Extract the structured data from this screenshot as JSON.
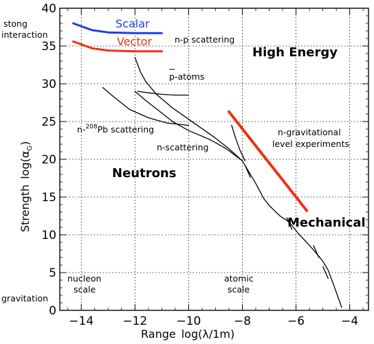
{
  "chart_data": {
    "type": "line",
    "xlabel": "Range",
    "xlabel_math": "log(λ/1m)",
    "ylabel": "Strength",
    "ylabel_math": "log(α",
    "ylabel_sub": "G",
    "ylabel_close": ")",
    "xlim": [
      -14.8,
      -3.3
    ],
    "ylim": [
      0,
      40
    ],
    "x_ticks": [
      -14,
      -12,
      -10,
      -8,
      -6,
      -4
    ],
    "y_ticks": [
      0,
      5,
      10,
      15,
      20,
      25,
      30,
      35,
      40
    ],
    "grid": true,
    "series": [
      {
        "name": "Scalar",
        "color": "#1f3fe0",
        "width": 3,
        "x": [
          -14.3,
          -13.6,
          -13.0,
          -12.0,
          -11.0
        ],
        "y": [
          38.0,
          37.1,
          36.8,
          36.7,
          36.7
        ]
      },
      {
        "name": "Vector",
        "color": "#f03010",
        "width": 3,
        "x": [
          -14.3,
          -13.6,
          -13.0,
          -12.0,
          -11.0
        ],
        "y": [
          35.6,
          34.7,
          34.4,
          34.3,
          34.3
        ]
      },
      {
        "name": "n-gravitational level experiments",
        "color": "#f03010",
        "width": 4,
        "x": [
          -8.5,
          -5.6
        ],
        "y": [
          26.3,
          13.2
        ]
      },
      {
        "name": "n-p scattering",
        "color": "#000000",
        "width": 1.3,
        "x": [
          -12.0,
          -11.8,
          -11.6,
          -11.2,
          -10.6,
          -9.8,
          -9.0,
          -8.5,
          -8.0,
          -7.8,
          -7.5,
          -7.2,
          -7.0,
          -6.8,
          -6.6,
          -6.3,
          -6.1,
          -5.9,
          -5.6,
          -5.3,
          -5.0,
          -4.8,
          -4.6,
          -4.3
        ],
        "y": [
          33.5,
          31.6,
          30.3,
          28.6,
          26.8,
          24.8,
          22.8,
          21.4,
          19.8,
          18.6,
          16.8,
          14.8,
          13.9,
          13.2,
          12.5,
          11.8,
          11.0,
          10.1,
          9.0,
          7.8,
          6.5,
          5.3,
          3.4,
          0.4
        ]
      },
      {
        "name": "p-atoms",
        "color": "#000000",
        "width": 1.3,
        "x": [
          -11.9,
          -11.5,
          -11.0,
          -10.5,
          -10.0
        ],
        "y": [
          29.0,
          28.8,
          28.6,
          28.5,
          28.5
        ]
      },
      {
        "name": "n-208Pb scattering",
        "color": "#000000",
        "width": 1.3,
        "x": [
          -13.2,
          -12.8,
          -12.2,
          -11.5,
          -10.8,
          -10.0
        ],
        "y": [
          29.5,
          28.3,
          26.6,
          25.5,
          24.8,
          24.5
        ]
      },
      {
        "name": "n-scattering",
        "color": "#000000",
        "width": 1.3,
        "x": [
          -12.0,
          -11.6,
          -11.1,
          -10.6,
          -10.0,
          -9.2,
          -8.6,
          -8.0
        ],
        "y": [
          29.0,
          27.8,
          26.4,
          25.0,
          23.8,
          22.6,
          21.4,
          19.8
        ]
      },
      {
        "name": "Mechanical",
        "color": "#000000",
        "width": 1.3,
        "x": [
          -8.4,
          -8.25,
          -8.1,
          -7.9
        ],
        "y": [
          24.5,
          22.8,
          21.3,
          19.8
        ]
      }
    ],
    "tick_marks": [
      {
        "x": -7.8,
        "y": 18.4
      },
      {
        "x": -6.25,
        "y": 11.5
      },
      {
        "x": -5.25,
        "y": 7.8
      },
      {
        "x": -4.9,
        "y": 5.0
      }
    ],
    "legend": [
      {
        "label": "Scalar",
        "color": "#1f3fe0"
      },
      {
        "label": "Vector",
        "color": "#f03010"
      }
    ],
    "annotations": {
      "strong": "stong",
      "interaction": "interaction",
      "gravitation": "gravitation",
      "np": "n-p scattering",
      "patoms": "p-atoms",
      "npb_pre": "n-",
      "npb_sup": "208",
      "npb_post": "Pb scattering",
      "nscattering": "n-scattering",
      "high_energy": "High Energy",
      "neutrons": "Neutrons",
      "mechanical": "Mechanical",
      "ngrav1": "n-gravitational",
      "ngrav2": "level experiments",
      "nucleon": "nucleon",
      "nucleon_scale": "scale",
      "atomic": "atomic",
      "atomic_scale": "scale"
    }
  }
}
